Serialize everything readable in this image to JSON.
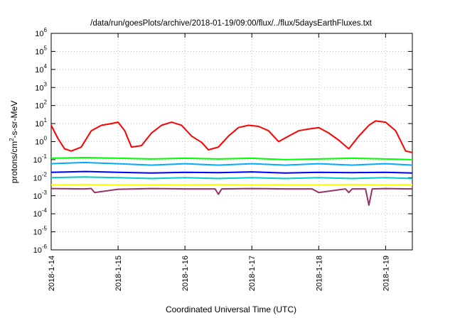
{
  "chart_data": {
    "type": "line",
    "title": "/data/run/goesPlots/archive/2018-01-19/09:00/flux/../flux/5daysEarthFluxes.txt",
    "xlabel": "Coordinated Universal Time (UTC)",
    "ylabel_parts": {
      "pre": "protons/cm",
      "sup": "2",
      "post": "-s-sr-MeV"
    },
    "y_scale": "log",
    "ylim_exp": [
      -6,
      6
    ],
    "y_ticks": [
      {
        "base": "10",
        "exp": "-6"
      },
      {
        "base": "10",
        "exp": "-5"
      },
      {
        "base": "10",
        "exp": "-4"
      },
      {
        "base": "10",
        "exp": "-3"
      },
      {
        "base": "10",
        "exp": "-2"
      },
      {
        "base": "10",
        "exp": "-1"
      },
      {
        "base": "10",
        "exp": "0"
      },
      {
        "base": "10",
        "exp": "1"
      },
      {
        "base": "10",
        "exp": "2"
      },
      {
        "base": "10",
        "exp": "3"
      },
      {
        "base": "10",
        "exp": "4"
      },
      {
        "base": "10",
        "exp": "5"
      },
      {
        "base": "10",
        "exp": "6"
      }
    ],
    "x_ticks": [
      "2018-1-14",
      "2018-1-15",
      "2018-1-16",
      "2018-1-17",
      "2018-1-18",
      "2018-1-19"
    ],
    "xlim_days": [
      0,
      5.4
    ],
    "grid": true,
    "series": [
      {
        "color": "#ff0000",
        "x": [
          0,
          0.1,
          0.2,
          0.3,
          0.45,
          0.6,
          0.75,
          0.9,
          1.0,
          1.1,
          1.2,
          1.35,
          1.5,
          1.65,
          1.8,
          1.95,
          2.1,
          2.25,
          2.35,
          2.5,
          2.65,
          2.8,
          2.95,
          3.1,
          3.25,
          3.4,
          3.55,
          3.7,
          3.85,
          4.0,
          4.15,
          4.3,
          4.45,
          4.6,
          4.75,
          4.85,
          5.0,
          5.15,
          5.3,
          5.4
        ],
        "y": [
          8,
          1.5,
          0.4,
          0.3,
          0.5,
          4,
          8,
          10,
          12,
          4,
          0.5,
          0.6,
          3,
          8,
          12,
          8,
          2,
          0.9,
          0.35,
          0.5,
          2,
          6,
          8,
          7,
          4,
          1,
          2,
          4,
          5,
          6,
          3,
          1.2,
          0.4,
          2,
          8,
          14,
          12,
          4,
          0.3,
          0.25
        ]
      },
      {
        "color": "#00ff00",
        "x": [
          0,
          0.5,
          1.0,
          1.5,
          2.0,
          2.5,
          3.0,
          3.5,
          4.0,
          4.5,
          5.0,
          5.4
        ],
        "y": [
          0.12,
          0.13,
          0.12,
          0.11,
          0.12,
          0.11,
          0.12,
          0.1,
          0.11,
          0.12,
          0.11,
          0.1
        ]
      },
      {
        "color": "#00aaff",
        "x": [
          0,
          0.5,
          1.0,
          1.5,
          2.0,
          2.5,
          3.0,
          3.5,
          4.0,
          4.5,
          5.0,
          5.4
        ],
        "y": [
          0.06,
          0.07,
          0.06,
          0.05,
          0.06,
          0.05,
          0.06,
          0.05,
          0.06,
          0.05,
          0.06,
          0.05
        ]
      },
      {
        "color": "#0000ff",
        "x": [
          0,
          0.5,
          1.0,
          1.5,
          2.0,
          2.5,
          3.0,
          3.5,
          4.0,
          4.5,
          5.0,
          5.4
        ],
        "y": [
          0.02,
          0.022,
          0.02,
          0.018,
          0.02,
          0.019,
          0.021,
          0.018,
          0.02,
          0.019,
          0.02,
          0.018
        ]
      },
      {
        "color": "#00cccc",
        "x": [
          0,
          0.5,
          1.0,
          1.5,
          2.0,
          2.5,
          3.0,
          3.5,
          4.0,
          4.5,
          5.0,
          5.4
        ],
        "y": [
          0.01,
          0.011,
          0.01,
          0.009,
          0.01,
          0.009,
          0.01,
          0.009,
          0.01,
          0.009,
          0.01,
          0.009
        ]
      },
      {
        "color": "#ffff00",
        "x": [
          0,
          0.5,
          1.0,
          1.5,
          2.0,
          2.5,
          3.0,
          3.5,
          4.0,
          4.5,
          5.0,
          5.4
        ],
        "y": [
          0.004,
          0.0042,
          0.004,
          0.0041,
          0.004,
          0.0042,
          0.004,
          0.0041,
          0.004,
          0.0042,
          0.004,
          0.0041
        ]
      },
      {
        "color": "#993366",
        "x": [
          0,
          0.5,
          0.6,
          0.65,
          1.0,
          1.5,
          2.0,
          2.45,
          2.5,
          2.55,
          3.0,
          3.5,
          3.9,
          4.0,
          4.4,
          4.45,
          4.5,
          4.7,
          4.75,
          4.8,
          5.0,
          5.4
        ],
        "y": [
          0.0025,
          0.0024,
          0.0025,
          0.0015,
          0.0023,
          0.0025,
          0.0024,
          0.0024,
          0.0012,
          0.0024,
          0.0025,
          0.0024,
          0.0024,
          0.0015,
          0.0024,
          0.0015,
          0.0024,
          0.0024,
          0.0003,
          0.0024,
          0.0025,
          0.0024
        ]
      }
    ]
  }
}
